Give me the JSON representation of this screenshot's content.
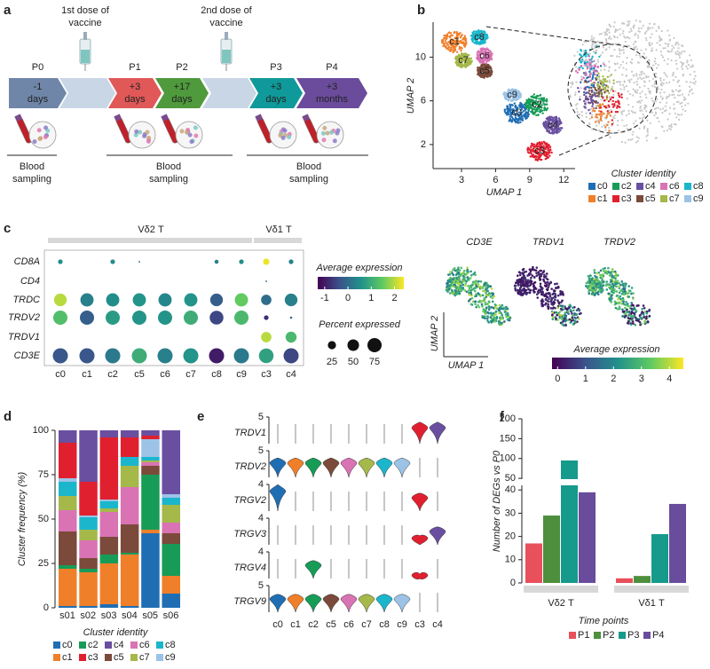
{
  "panel_labels": [
    "a",
    "b",
    "c",
    "d",
    "e",
    "f"
  ],
  "timeline": {
    "stages": [
      {
        "name": "P0",
        "time": [
          "-1",
          "days"
        ],
        "color": "#6f86a8"
      },
      {
        "name": "P1",
        "time": [
          "+3",
          "days"
        ],
        "color": "#e05858"
      },
      {
        "name": "P2",
        "time": [
          "+17",
          "days"
        ],
        "color": "#4f9a3c"
      },
      {
        "name": "P3",
        "time": [
          "+3",
          "days"
        ],
        "color": "#10999a"
      },
      {
        "name": "P4",
        "time": [
          "+3",
          "months"
        ],
        "color": "#6b4c9c"
      }
    ],
    "doses": [
      [
        "1st dose of",
        "vaccine"
      ],
      [
        "2nd dose of",
        "vaccine"
      ]
    ],
    "sampling": [
      [
        "Blood",
        "sampling"
      ],
      [
        "Blood",
        "sampling"
      ],
      [
        "Blood",
        "sampling"
      ]
    ]
  },
  "umap": {
    "x_label": "UMAP 1",
    "y_label": "UMAP 2",
    "xlim": [
      0.5,
      13
    ],
    "ylim": [
      -0.2,
      13.2
    ],
    "xticks": [
      3,
      6,
      9,
      12
    ],
    "yticks": [
      2,
      6,
      10
    ],
    "legend_title": "Cluster identity",
    "clusters": [
      {
        "name": "c0",
        "color": "#1f6eb4"
      },
      {
        "name": "c1",
        "color": "#f07f2a"
      },
      {
        "name": "c2",
        "color": "#179c57"
      },
      {
        "name": "c3",
        "color": "#e0202f"
      },
      {
        "name": "c4",
        "color": "#6a4fa0"
      },
      {
        "name": "c5",
        "color": "#7b4a3a"
      },
      {
        "name": "c6",
        "color": "#d973b4"
      },
      {
        "name": "c7",
        "color": "#a5b84a"
      },
      {
        "name": "c8",
        "color": "#1bb6cc"
      },
      {
        "name": "c9",
        "color": "#9cc3e6"
      }
    ]
  },
  "dotplot": {
    "type": "dot",
    "groups": [
      {
        "name": "Vδ2 T",
        "span": 8
      },
      {
        "name": "Vδ1 T",
        "span": 2
      }
    ],
    "genes": [
      "CD8A",
      "CD4",
      "TRDC",
      "TRDV2",
      "TRDV1",
      "CD3E"
    ],
    "clusters": [
      "c0",
      "c1",
      "c2",
      "c5",
      "c6",
      "c7",
      "c8",
      "c9",
      "c3",
      "c4"
    ],
    "expression": [
      [
        0.5,
        0,
        0.5,
        0,
        0,
        0,
        0.3,
        0.5,
        2.3,
        0.3
      ],
      [
        0,
        0,
        0,
        0,
        0,
        0,
        0,
        0,
        0,
        0
      ],
      [
        2,
        0.3,
        0.5,
        0.6,
        0.4,
        0.6,
        -0.2,
        1.5,
        0,
        0.3
      ],
      [
        1.3,
        -0.2,
        0.7,
        0.6,
        0.6,
        1,
        -0.5,
        1.2,
        -0.8,
        0
      ],
      [
        0,
        0,
        0,
        0,
        0,
        0,
        0,
        0,
        2,
        1.2
      ],
      [
        -0.3,
        -0.3,
        0.2,
        1,
        0.3,
        0.6,
        -1,
        0.2,
        0.8,
        -0.5
      ]
    ],
    "percent": [
      [
        8,
        0,
        8,
        1,
        0,
        0,
        6,
        8,
        15,
        8
      ],
      [
        0,
        0,
        0,
        0,
        0,
        0,
        0,
        0,
        1,
        0
      ],
      [
        60,
        65,
        65,
        65,
        65,
        65,
        60,
        65,
        40,
        60
      ],
      [
        75,
        75,
        75,
        75,
        75,
        75,
        70,
        75,
        8,
        2
      ],
      [
        0,
        0,
        0,
        0,
        0,
        0,
        0,
        0,
        40,
        45
      ],
      [
        85,
        85,
        85,
        85,
        85,
        85,
        85,
        85,
        80,
        85
      ]
    ],
    "color_title": "Average expression",
    "color_lim": [
      -1.3,
      2.4
    ],
    "color_ticks": [
      -1,
      0,
      1,
      2
    ],
    "size_title": "Percent expressed",
    "size_ticks": [
      25,
      50,
      75
    ]
  },
  "feature": {
    "genes": [
      "CD3E",
      "TRDV1",
      "TRDV2"
    ],
    "x_label": "UMAP 1",
    "y_label": "UMAP 2",
    "color_title": "Average expression",
    "color_lim": [
      -0.2,
      4.5
    ],
    "color_ticks": [
      0,
      1,
      2,
      3,
      4
    ]
  },
  "chart_data": [
    {
      "type": "stacked_bar",
      "y_label": "Cluster frequency (%)",
      "categories": [
        "s01",
        "s02",
        "s03",
        "s04",
        "s05",
        "s06"
      ],
      "ylim": [
        0,
        100
      ],
      "yticks": [
        0,
        25,
        50,
        75,
        100
      ],
      "legend_title": "Cluster identity",
      "series": [
        {
          "name": "c0",
          "color": "#1f6eb4",
          "values": [
            1,
            1,
            2,
            1,
            42,
            8
          ]
        },
        {
          "name": "c1",
          "color": "#f07f2a",
          "values": [
            21,
            19,
            23,
            29,
            2,
            10
          ]
        },
        {
          "name": "c2",
          "color": "#179c57",
          "values": [
            2,
            2,
            5,
            1,
            31,
            18
          ]
        },
        {
          "name": "c5",
          "color": "#7b4a3a",
          "values": [
            19,
            6,
            10,
            16,
            5,
            6
          ]
        },
        {
          "name": "c6",
          "color": "#d973b4",
          "values": [
            12,
            10,
            14,
            21,
            2,
            6
          ]
        },
        {
          "name": "c7",
          "color": "#a5b84a",
          "values": [
            8,
            6,
            2,
            12,
            1,
            10
          ]
        },
        {
          "name": "c8",
          "color": "#1bb6cc",
          "values": [
            8,
            7,
            4,
            5,
            2,
            4
          ]
        },
        {
          "name": "c9",
          "color": "#9cc3e6",
          "values": [
            2,
            1,
            1,
            0,
            10,
            2
          ]
        },
        {
          "name": "c3",
          "color": "#e0202f",
          "values": [
            20,
            19,
            35,
            11,
            2,
            0
          ]
        },
        {
          "name": "c4",
          "color": "#6a4fa0",
          "values": [
            7,
            29,
            4,
            4,
            3,
            36
          ]
        }
      ]
    },
    {
      "type": "violin",
      "genes": [
        "TRDV1",
        "TRDV2",
        "TRGV2",
        "TRGV3",
        "TRGV4",
        "TRGV9"
      ],
      "ymax": [
        5,
        5,
        4,
        4,
        4,
        5
      ],
      "categories": [
        "c0",
        "c1",
        "c2",
        "c5",
        "c6",
        "c7",
        "c8",
        "c9",
        "c3",
        "c4"
      ],
      "colors": [
        "#1f6eb4",
        "#f07f2a",
        "#179c57",
        "#7b4a3a",
        "#d973b4",
        "#a5b84a",
        "#1bb6cc",
        "#9cc3e6",
        "#e0202f",
        "#6a4fa0"
      ],
      "medians": [
        [
          0,
          0,
          0,
          0,
          0,
          0,
          0,
          0,
          3,
          3
        ],
        [
          2.7,
          2.7,
          2.7,
          2.7,
          2.7,
          2.7,
          2.7,
          2.7,
          0,
          0
        ],
        [
          3,
          0,
          0,
          0,
          0,
          0,
          0,
          0,
          2,
          0
        ],
        [
          0,
          0,
          0,
          0,
          0,
          0,
          0,
          0,
          1,
          2
        ],
        [
          0,
          0,
          2,
          0,
          0,
          0,
          0,
          0,
          0.5,
          0
        ],
        [
          2.5,
          2.5,
          2.5,
          2.5,
          2.5,
          2.5,
          2.5,
          2.5,
          0,
          0
        ]
      ]
    },
    {
      "type": "broken_bar",
      "y_label": "Number of DEGs vs P0",
      "categories": [
        "Vδ2 T",
        "Vδ1 T"
      ],
      "ylim_lower": [
        0,
        42
      ],
      "ylim_upper": [
        48,
        200
      ],
      "yticks": [
        0,
        10,
        20,
        30,
        40,
        50,
        100,
        150,
        200
      ],
      "legend_title": "Time points",
      "series": [
        {
          "name": "P1",
          "color": "#e8505b",
          "values": [
            17,
            2
          ]
        },
        {
          "name": "P2",
          "color": "#4d8f3d",
          "values": [
            29,
            3
          ]
        },
        {
          "name": "P3",
          "color": "#169a8c",
          "values": [
            95,
            21
          ]
        },
        {
          "name": "P4",
          "color": "#6a4c9c",
          "values": [
            39,
            34
          ]
        }
      ]
    }
  ]
}
